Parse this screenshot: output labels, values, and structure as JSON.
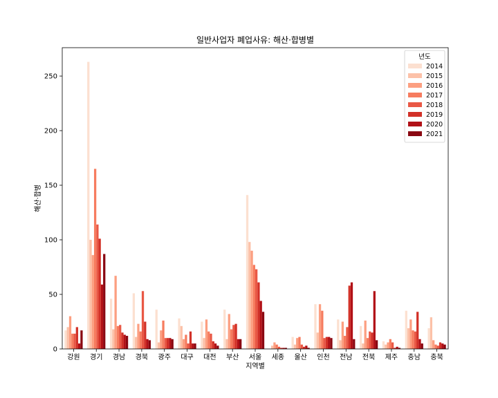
{
  "chart_data": {
    "type": "bar",
    "title": "일반사업자 폐업사유: 해산·합병별",
    "xlabel": "지역별",
    "ylabel": "해산·합병",
    "ylim": [
      0,
      276
    ],
    "yticks": [
      0,
      50,
      100,
      150,
      200,
      250
    ],
    "grid": false,
    "legend_title": "년도",
    "legend_position": "top-right",
    "categories": [
      "강원",
      "경기",
      "경남",
      "경북",
      "광주",
      "대구",
      "대전",
      "부산",
      "서울",
      "세종",
      "울산",
      "인천",
      "전남",
      "전북",
      "제주",
      "충남",
      "충북"
    ],
    "series": [
      {
        "name": "2014",
        "color": "#fce0d0",
        "values": [
          17,
          263,
          46,
          51,
          36,
          28,
          25,
          36,
          141,
          0,
          11,
          41,
          27,
          21,
          7,
          35,
          19
        ]
      },
      {
        "name": "2015",
        "color": "#fcc1a8",
        "values": [
          20,
          100,
          18,
          11,
          6,
          21,
          10,
          9,
          98,
          3,
          4,
          15,
          8,
          5,
          4,
          19,
          29
        ]
      },
      {
        "name": "2016",
        "color": "#fc9f81",
        "values": [
          30,
          86,
          67,
          23,
          17,
          9,
          27,
          32,
          90,
          6,
          10,
          41,
          25,
          26,
          6,
          27,
          8
        ]
      },
      {
        "name": "2017",
        "color": "#f67c5f",
        "values": [
          14,
          165,
          21,
          16,
          26,
          13,
          16,
          18,
          77,
          4,
          11,
          35,
          12,
          10,
          9,
          17,
          4
        ]
      },
      {
        "name": "2018",
        "color": "#e95845",
        "values": [
          14,
          114,
          22,
          53,
          10,
          5,
          14,
          22,
          73,
          2,
          4,
          10,
          20,
          16,
          6,
          16,
          3
        ]
      },
      {
        "name": "2019",
        "color": "#d23128",
        "values": [
          20,
          101,
          15,
          25,
          10,
          16,
          7,
          23,
          61,
          1,
          2,
          11,
          58,
          15,
          1,
          34,
          6
        ]
      },
      {
        "name": "2020",
        "color": "#b11117",
        "values": [
          5,
          59,
          13,
          9,
          10,
          5,
          5,
          9,
          44,
          1,
          3,
          11,
          61,
          53,
          2,
          9,
          5
        ]
      },
      {
        "name": "2021",
        "color": "#8a0812",
        "values": [
          17,
          87,
          12,
          8,
          9,
          5,
          3,
          9,
          34,
          1,
          1,
          10,
          9,
          8,
          1,
          5,
          4
        ]
      }
    ]
  }
}
